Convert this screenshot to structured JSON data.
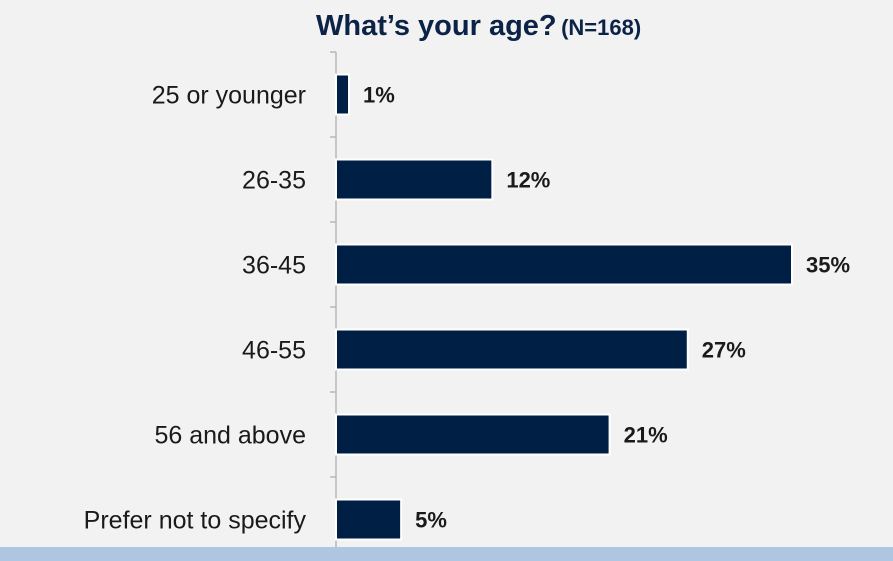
{
  "chart_data": {
    "type": "bar",
    "orientation": "horizontal",
    "title": "What’s your age?",
    "subtitle": "(N=168)",
    "categories": [
      "25 or younger",
      "26-35",
      "36-45",
      "46-55",
      "56 and above",
      "Prefer not to specify"
    ],
    "values": [
      1,
      12,
      35,
      27,
      21,
      5
    ],
    "value_labels": [
      "1%",
      "12%",
      "35%",
      "27%",
      "21%",
      "5%"
    ],
    "xlim": [
      0,
      35
    ],
    "grid": false,
    "legend": "none"
  },
  "colors": {
    "bar": "#001f45",
    "text": "#1a1a1a",
    "title": "#0b2347",
    "axis": "#b8b8b8",
    "background": "#f2f2f2",
    "band": "#aec6e0"
  }
}
